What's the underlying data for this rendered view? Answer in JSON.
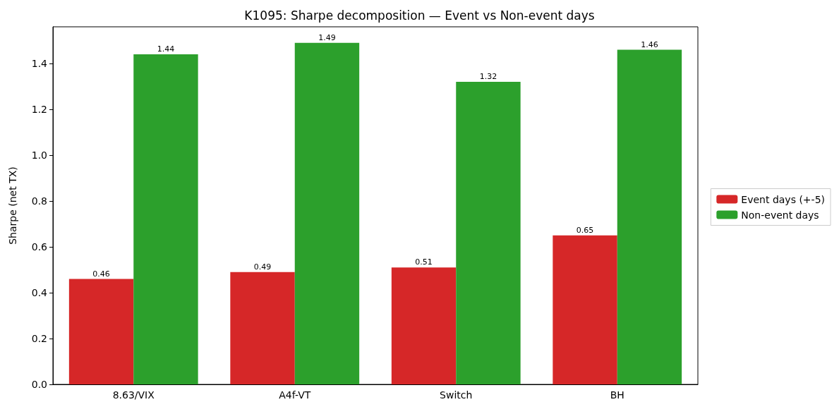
{
  "chart_data": {
    "type": "bar",
    "title": "K1095: Sharpe decomposition — Event vs Non-event days",
    "ylabel": "Sharpe (net TX)",
    "categories": [
      "8.63/VIX",
      "A4f-VT",
      "Switch",
      "BH"
    ],
    "series": [
      {
        "name": "Event days (+-5)",
        "color": "#d62728",
        "values": [
          0.46,
          0.49,
          0.51,
          0.65
        ]
      },
      {
        "name": "Non-event days",
        "color": "#2ca02c",
        "values": [
          1.44,
          1.49,
          1.32,
          1.46
        ]
      }
    ],
    "ylim": [
      0,
      1.56
    ],
    "yticks": [
      {
        "value": 0,
        "label": "0.0"
      },
      {
        "value": 0.2,
        "label": "0.2"
      },
      {
        "value": 0.4,
        "label": "0.4"
      },
      {
        "value": 0.6,
        "label": "0.6"
      },
      {
        "value": 0.8,
        "label": "0.8"
      },
      {
        "value": 1.0,
        "label": "1.0"
      },
      {
        "value": 1.2,
        "label": "1.2"
      },
      {
        "value": 1.4,
        "label": "1.4"
      }
    ],
    "data_labels": true,
    "grid": false,
    "legend": "right"
  }
}
